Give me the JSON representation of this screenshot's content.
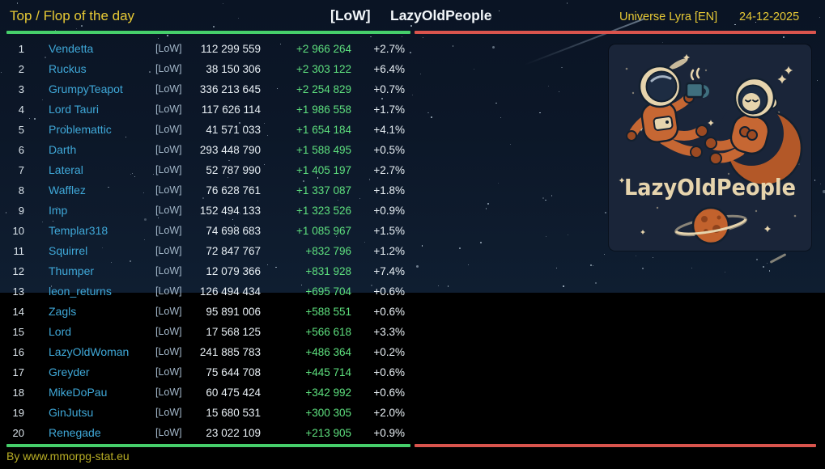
{
  "header": {
    "title": "Top / Flop of the day",
    "alliance_tag": "[LoW]",
    "alliance_name": "LazyOldPeople",
    "universe": "Universe Lyra [EN]",
    "date": "24-12-2025"
  },
  "leaderboard": {
    "rows": [
      {
        "rank": "1",
        "name": "Vendetta",
        "tag": "[LoW]",
        "score": "112 299 559",
        "gain": "+2 966 264",
        "percent": "+2.7%"
      },
      {
        "rank": "2",
        "name": "Ruckus",
        "tag": "[LoW]",
        "score": "38 150 306",
        "gain": "+2 303 122",
        "percent": "+6.4%"
      },
      {
        "rank": "3",
        "name": "GrumpyTeapot",
        "tag": "[LoW]",
        "score": "336 213 645",
        "gain": "+2 254 829",
        "percent": "+0.7%"
      },
      {
        "rank": "4",
        "name": "Lord Tauri",
        "tag": "[LoW]",
        "score": "117 626 114",
        "gain": "+1 986 558",
        "percent": "+1.7%"
      },
      {
        "rank": "5",
        "name": "Problemattic",
        "tag": "[LoW]",
        "score": "41 571 033",
        "gain": "+1 654 184",
        "percent": "+4.1%"
      },
      {
        "rank": "6",
        "name": "Darth",
        "tag": "[LoW]",
        "score": "293 448 790",
        "gain": "+1 588 495",
        "percent": "+0.5%"
      },
      {
        "rank": "7",
        "name": "Lateral",
        "tag": "[LoW]",
        "score": "52 787 990",
        "gain": "+1 405 197",
        "percent": "+2.7%"
      },
      {
        "rank": "8",
        "name": "Wafflez",
        "tag": "[LoW]",
        "score": "76 628 761",
        "gain": "+1 337 087",
        "percent": "+1.8%"
      },
      {
        "rank": "9",
        "name": "Imp",
        "tag": "[LoW]",
        "score": "152 494 133",
        "gain": "+1 323 526",
        "percent": "+0.9%"
      },
      {
        "rank": "10",
        "name": "Templar318",
        "tag": "[LoW]",
        "score": "74 698 683",
        "gain": "+1 085 967",
        "percent": "+1.5%"
      },
      {
        "rank": "11",
        "name": "Squirrel",
        "tag": "[LoW]",
        "score": "72 847 767",
        "gain": "+832 796",
        "percent": "+1.2%"
      },
      {
        "rank": "12",
        "name": "Thumper",
        "tag": "[LoW]",
        "score": "12 079 366",
        "gain": "+831 928",
        "percent": "+7.4%"
      },
      {
        "rank": "13",
        "name": "leon_returns",
        "tag": "[LoW]",
        "score": "126 494 434",
        "gain": "+695 704",
        "percent": "+0.6%"
      },
      {
        "rank": "14",
        "name": "Zagls",
        "tag": "[LoW]",
        "score": "95 891 006",
        "gain": "+588 551",
        "percent": "+0.6%"
      },
      {
        "rank": "15",
        "name": "Lord",
        "tag": "[LoW]",
        "score": "17 568 125",
        "gain": "+566 618",
        "percent": "+3.3%"
      },
      {
        "rank": "16",
        "name": "LazyOldWoman",
        "tag": "[LoW]",
        "score": "241 885 783",
        "gain": "+486 364",
        "percent": "+0.2%"
      },
      {
        "rank": "17",
        "name": "Greyder",
        "tag": "[LoW]",
        "score": "75 644 708",
        "gain": "+445 714",
        "percent": "+0.6%"
      },
      {
        "rank": "18",
        "name": "MikeDoPau",
        "tag": "[LoW]",
        "score": "60 475 424",
        "gain": "+342 992",
        "percent": "+0.6%"
      },
      {
        "rank": "19",
        "name": "GinJutsu",
        "tag": "[LoW]",
        "score": "15 680 531",
        "gain": "+300 305",
        "percent": "+2.0%"
      },
      {
        "rank": "20",
        "name": "Renegade",
        "tag": "[LoW]",
        "score": "23 022 109",
        "gain": "+213 905",
        "percent": "+0.9%"
      }
    ]
  },
  "logo": {
    "text": "LazyOldPeople"
  },
  "footer": {
    "credit": "By www.mmorpg-stat.eu"
  },
  "colors": {
    "accent_green": "#46cf6b",
    "accent_red": "#d9544d",
    "header_yellow": "#e8ca35",
    "footer_yellow": "#b9ae25",
    "link_blue": "#3fa8d8",
    "gain_green": "#5ee07e",
    "tag_gray": "#a3b7c9",
    "value_white": "#e9f0f5"
  }
}
